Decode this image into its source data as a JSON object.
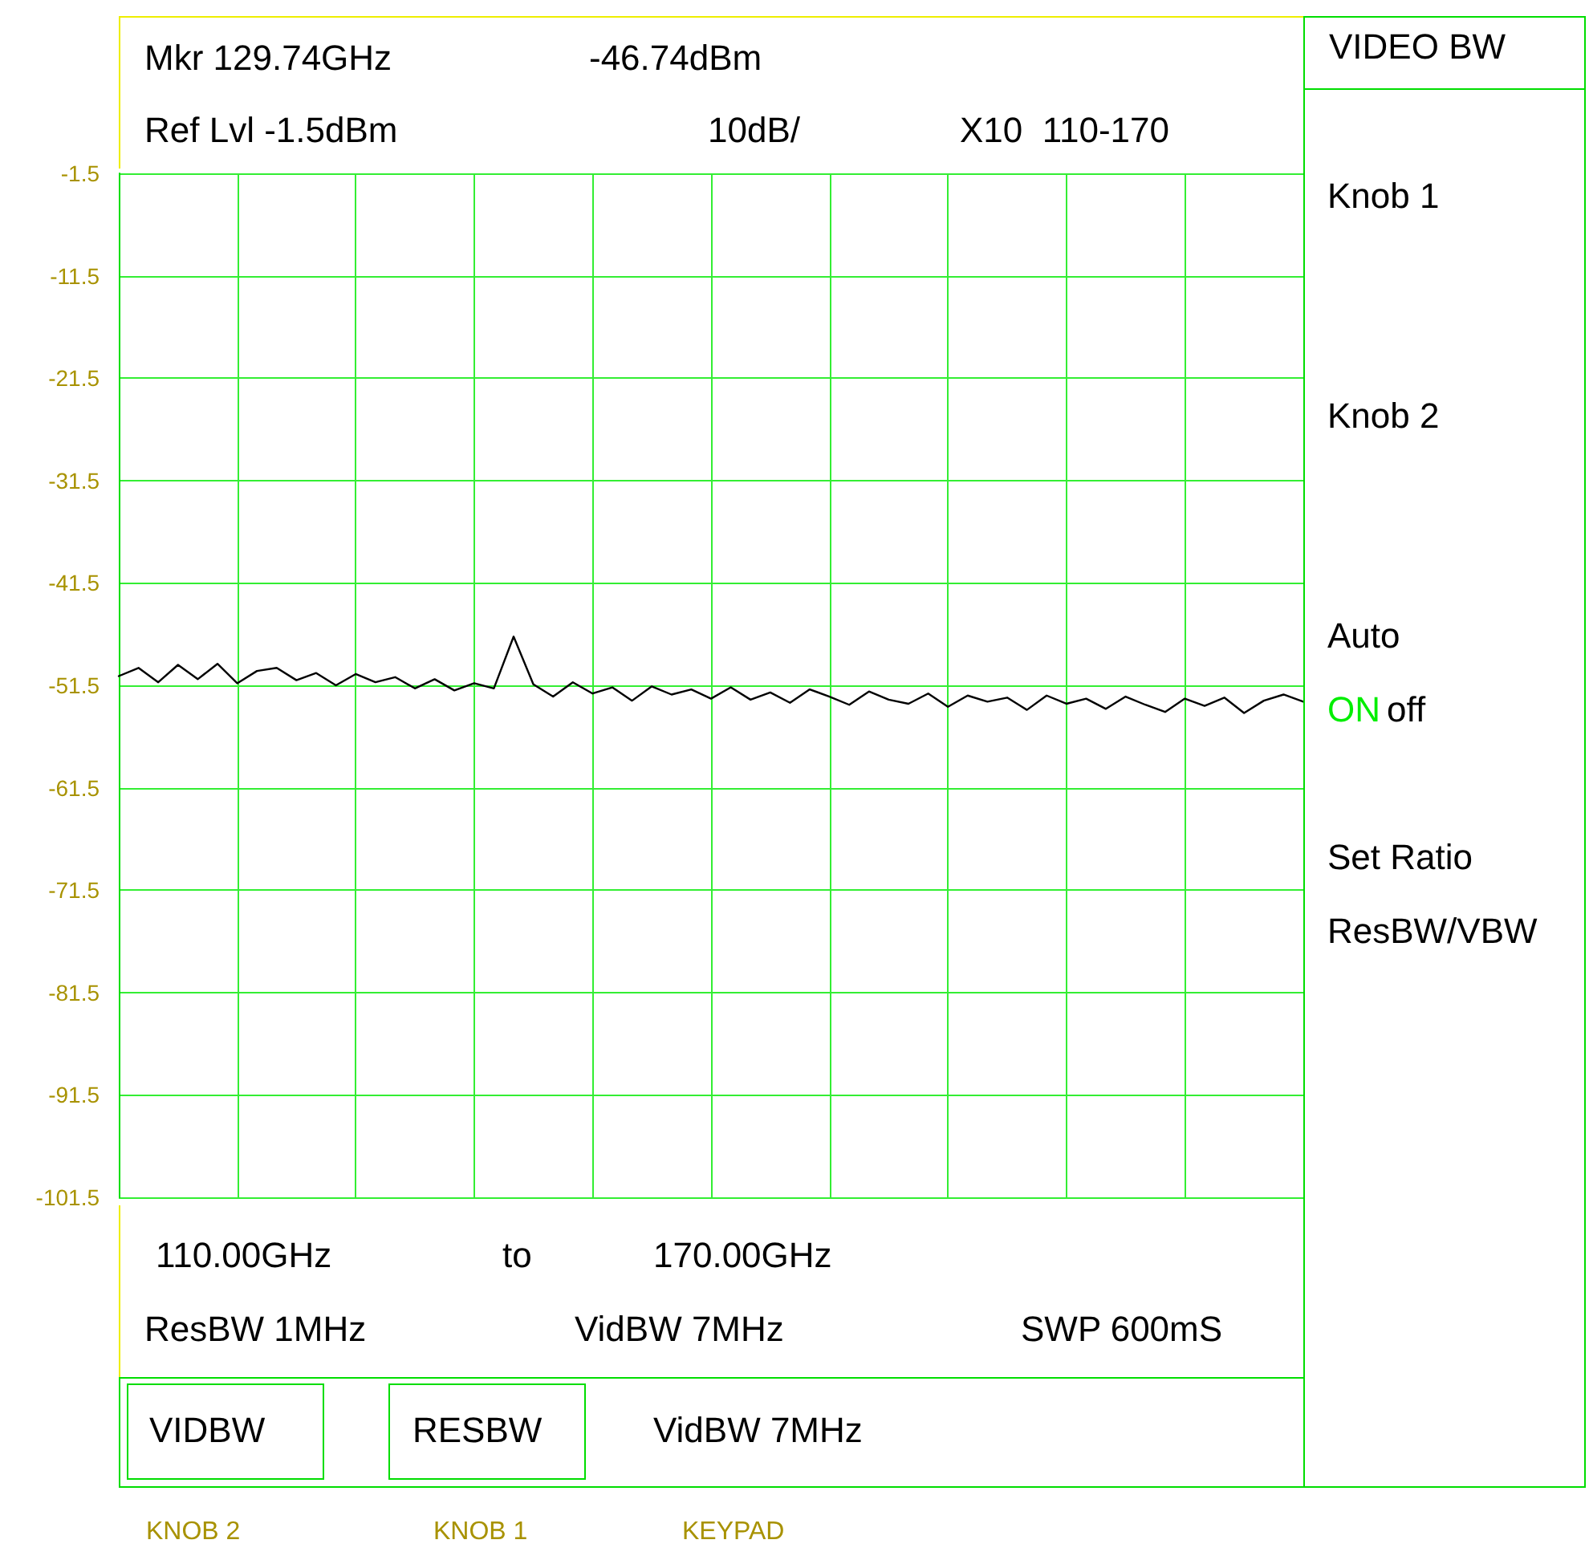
{
  "chart_data": {
    "type": "line",
    "categories": [
      null,
      null,
      null,
      null,
      null,
      null,
      null,
      null,
      null,
      null,
      null,
      null,
      null,
      null,
      null,
      null,
      null,
      null,
      null,
      null,
      null,
      null,
      null,
      null,
      null,
      null,
      null,
      null,
      null,
      null,
      null,
      null,
      null,
      null,
      null,
      null,
      null,
      null,
      null,
      null,
      null,
      null,
      null,
      null,
      null,
      null,
      null,
      null,
      null,
      null,
      null,
      null,
      null,
      null,
      null,
      null,
      null,
      null,
      null,
      null,
      null
    ],
    "series": [
      {
        "color": "#000000",
        "values": [
          -50.6,
          -49.8,
          -51.2,
          -49.5,
          -50.9,
          -49.4,
          -51.3,
          -50.1,
          -49.8,
          -51.0,
          -50.3,
          -51.5,
          -50.4,
          -51.2,
          -50.7,
          -51.8,
          -50.9,
          -52.0,
          -51.3,
          -51.8,
          -46.74,
          -51.4,
          -52.6,
          -51.2,
          -52.3,
          -51.7,
          -53.0,
          -51.6,
          -52.4,
          -51.9,
          -52.8,
          -51.7,
          -52.9,
          -52.2,
          -53.2,
          -51.9,
          -52.6,
          -53.4,
          -52.1,
          -52.9,
          -53.3,
          -52.3,
          -53.6,
          -52.5,
          -53.1,
          -52.7,
          -53.9,
          -52.5,
          -53.3,
          -52.8,
          -53.8,
          -52.6,
          -53.4,
          -54.1,
          -52.8,
          -53.5,
          -52.7,
          -54.2,
          -53.0,
          -52.4,
          -53.1
        ]
      }
    ],
    "ylim": [
      -101.5,
      -1.5
    ],
    "yticks": [
      -101.5,
      -91.5,
      -81.5,
      -71.5,
      -61.5,
      -51.5,
      -41.5,
      -31.5,
      -21.5,
      -11.5,
      -1.5
    ],
    "tick_labels": "y",
    "grid": true,
    "marker": "none",
    "line_style": "solid",
    "annotations": [
      "Mkr 129.74GHz",
      "-46.74dBm",
      "Ref Lvl -1.5dBm",
      "10dB/",
      "X10  110-170",
      "VIDEO BW",
      "Knob 1",
      "Knob 2",
      "Auto",
      "ON",
      "off",
      "Set Ratio",
      "ResBW/VBW",
      "110.00GHz",
      "to",
      "170.00GHz",
      "ResBW 1MHz",
      "VidBW 7MHz",
      "SWP 600mS",
      "VIDBW",
      "RESBW",
      "VidBW 7MHz",
      "KNOB 2",
      "KNOB 1",
      "KEYPAD"
    ]
  }
}
